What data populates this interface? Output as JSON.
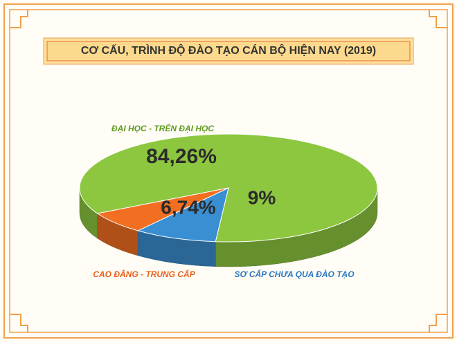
{
  "chart_data": {
    "type": "pie3d",
    "title": "CƠ CẤU, TRÌNH ĐỘ ĐÀO TẠO CÁN BỘ HIỆN NAY (2019)",
    "categories": [
      "ĐẠI HỌC - TRÊN ĐẠI HỌC",
      "CAO ĐẲNG - TRUNG CẤP",
      "SƠ CẤP CHƯA QUA ĐÀO TẠO"
    ],
    "values": [
      84.26,
      6.74,
      9
    ],
    "value_labels": [
      "84,26%",
      "6,74%",
      "9%"
    ],
    "colors": [
      "#8dc63f",
      "#f26f21",
      "#3a8fd2"
    ]
  }
}
